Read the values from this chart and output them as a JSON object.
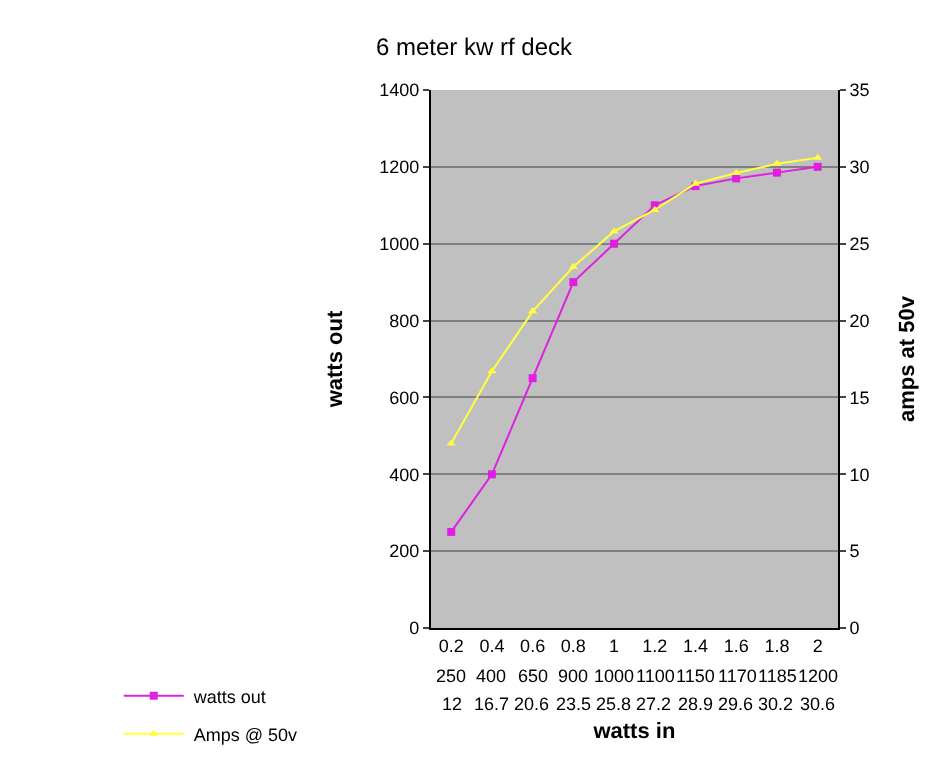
{
  "chart_data": {
    "type": "line",
    "title": "6 meter kw rf deck",
    "xlabel": "watts in",
    "ylabel": "watts out",
    "y2label": "amps at 50v",
    "categories": [
      "0.2",
      "0.4",
      "0.6",
      "0.8",
      "1",
      "1.2",
      "1.4",
      "1.6",
      "1.8",
      "2"
    ],
    "series": [
      {
        "name": "watts out",
        "color": "#e020e0",
        "values": [
          250,
          400,
          650,
          900,
          1000,
          1100,
          1150,
          1170,
          1185,
          1200
        ],
        "marker": "square"
      },
      {
        "name": "Amps @ 50v",
        "color": "#ffff40",
        "values": [
          12,
          16.7,
          20.6,
          23.5,
          25.8,
          27.2,
          28.9,
          29.6,
          30.2,
          30.6
        ],
        "axis": "y2",
        "marker": "triangle"
      }
    ],
    "ylim": [
      0,
      1400
    ],
    "yticks": [
      0,
      200,
      400,
      600,
      800,
      1000,
      1200,
      1400
    ],
    "y2lim": [
      0,
      35
    ],
    "y2ticks": [
      0,
      5,
      10,
      15,
      20,
      25,
      30,
      35
    ],
    "grid": "y",
    "legend": "bottom",
    "data_labels": true
  }
}
